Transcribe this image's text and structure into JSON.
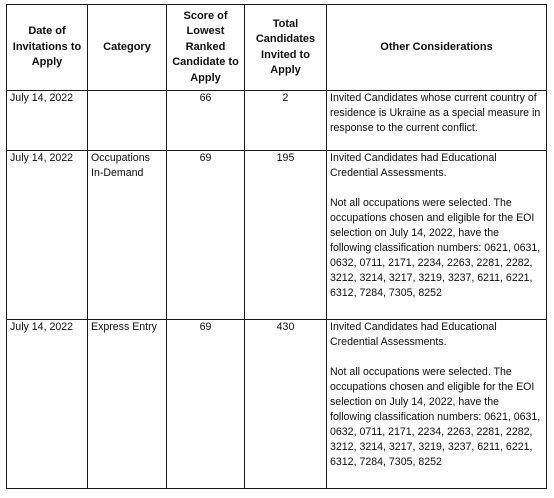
{
  "headers": {
    "date": "Date of Invitations to Apply",
    "category": "Category",
    "score": "Score of Lowest Ranked Candidate to Apply",
    "total": "Total Candidates Invited to Apply",
    "other": "Other Considerations"
  },
  "rows": [
    {
      "date": "July 14, 2022",
      "category": "",
      "score": "66",
      "total": "2",
      "other_p1": "Invited Candidates whose current country of residence is Ukraine as a special measure in response to the current conflict.",
      "other_p2": ""
    },
    {
      "date": "July 14, 2022",
      "category": "Occupations In-Demand",
      "score": "69",
      "total": "195",
      "other_p1": "Invited Candidates had Educational Credential Assessments.",
      "other_p2": "Not all occupations were selected. The occupations chosen and eligible for the EOI selection on July 14, 2022, have the following classification numbers: 0621, 0631, 0632, 0711, 2171, 2234, 2263, 2281, 2282, 3212, 3214, 3217, 3219, 3237, 6211, 6221, 6312, 7284, 7305, 8252"
    },
    {
      "date": "July 14, 2022",
      "category": "Express Entry",
      "score": "69",
      "total": "430",
      "other_p1": "Invited Candidates had Educational Credential Assessments.",
      "other_p2": "Not all occupations were selected. The occupations chosen and eligible for the EOI selection on July 14, 2022, have the following classification numbers: 0621, 0631, 0632, 0711, 2171, 2234, 2263, 2281, 2282, 3212, 3214, 3217, 3219, 3237, 6211, 6221, 6312, 7284, 7305, 8252"
    }
  ]
}
